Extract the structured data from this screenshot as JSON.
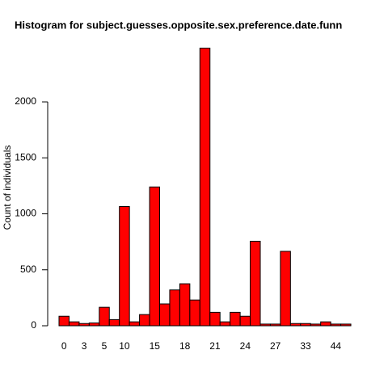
{
  "chart_data": {
    "type": "bar",
    "title": "Histogram for subject.guesses.opposite.sex.preference.date.funn",
    "ylabel": "Count of individuals",
    "categories": [
      "0",
      null,
      "3",
      null,
      "5",
      null,
      "10",
      null,
      null,
      "15",
      null,
      null,
      "18",
      null,
      null,
      "21",
      null,
      null,
      "24",
      null,
      null,
      "27",
      null,
      null,
      "33",
      null,
      null,
      "44",
      null
    ],
    "values": [
      85,
      35,
      20,
      25,
      165,
      55,
      1065,
      35,
      100,
      1240,
      195,
      320,
      375,
      230,
      2480,
      120,
      35,
      120,
      85,
      755,
      15,
      15,
      665,
      20,
      20,
      15,
      35,
      15,
      15
    ],
    "color": "#ff0000",
    "ylim": [
      0,
      2500
    ],
    "yticks": [
      0,
      500,
      1000,
      1500,
      2000
    ]
  }
}
